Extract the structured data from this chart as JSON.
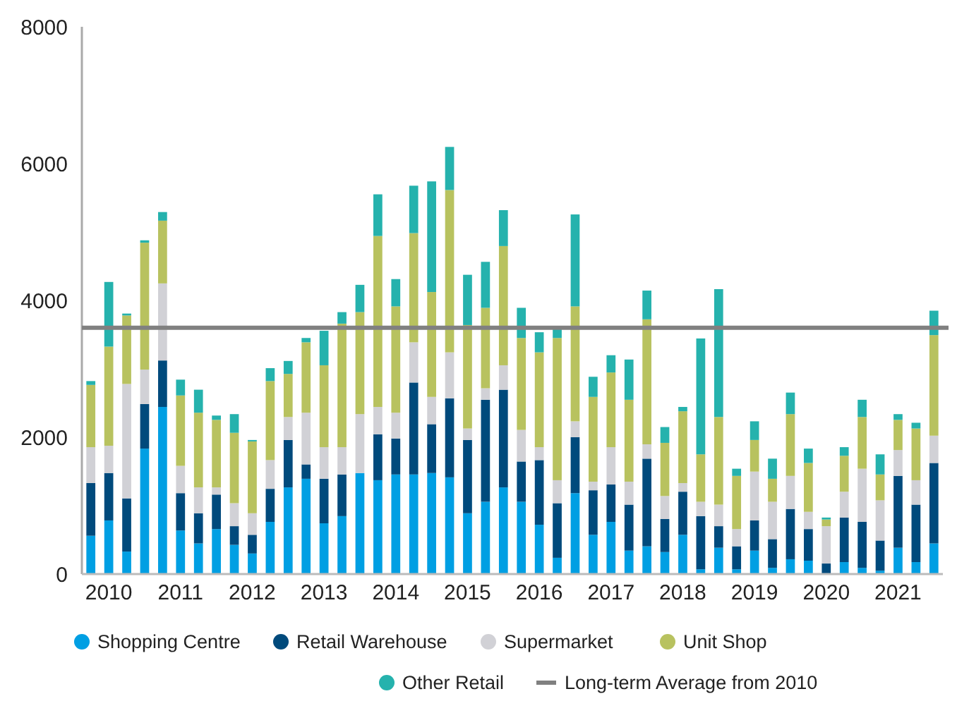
{
  "chart_data": {
    "type": "bar",
    "stacked": true,
    "categories": [
      null,
      "2010",
      null,
      null,
      null,
      "2011",
      null,
      null,
      null,
      "2012",
      null,
      null,
      null,
      "2013",
      null,
      null,
      null,
      "2014",
      null,
      null,
      null,
      "2015",
      null,
      null,
      null,
      "2016",
      null,
      null,
      null,
      "2017",
      null,
      null,
      null,
      "2018",
      null,
      null,
      null,
      "2019",
      null,
      null,
      null,
      "2020",
      null,
      null,
      null,
      "2021",
      null,
      null
    ],
    "series": [
      {
        "name": "Shopping Centre",
        "color": "#009fe3",
        "values": [
          560,
          784,
          329,
          1834,
          2443,
          637,
          448,
          658,
          427,
          301,
          763,
          1267,
          1393,
          742,
          847,
          1477,
          1372,
          1456,
          1456,
          1477,
          1414,
          889,
          1057,
          1267,
          1057,
          721,
          238,
          1183,
          574,
          763,
          343,
          406,
          322,
          574,
          70,
          385,
          70,
          343,
          91,
          217,
          196,
          7,
          175,
          91,
          49,
          385,
          175,
          448
        ]
      },
      {
        "name": "Retail Warehouse",
        "color": "#004a7c",
        "values": [
          770,
          693,
          777,
          651,
          679,
          546,
          441,
          504,
          273,
          273,
          483,
          693,
          210,
          651,
          609,
          0,
          672,
          525,
          1344,
          714,
          1155,
          1071,
          1491,
          1428,
          588,
          945,
          798,
          819,
          651,
          546,
          672,
          1281,
          483,
          630,
          777,
          315,
          336,
          441,
          420,
          735,
          462,
          147,
          651,
          672,
          441,
          1050,
          840,
          1176
        ]
      },
      {
        "name": "Supermarket",
        "color": "#d1d1d6",
        "values": [
          525,
          399,
          1673,
          504,
          1127,
          399,
          378,
          105,
          336,
          315,
          420,
          336,
          756,
          462,
          399,
          861,
          399,
          378,
          588,
          399,
          672,
          168,
          168,
          357,
          462,
          189,
          336,
          231,
          126,
          546,
          336,
          210,
          336,
          126,
          210,
          315,
          252,
          714,
          546,
          483,
          252,
          546,
          378,
          777,
          588,
          378,
          357,
          399
        ]
      },
      {
        "name": "Unit Shop",
        "color": "#b8c25f",
        "values": [
          910,
          1449,
          1001,
          1855,
          917,
          1029,
          1092,
          987,
          1029,
          1050,
          1155,
          630,
          1029,
          1197,
          1806,
          1491,
          2499,
          1554,
          1596,
          1533,
          2373,
          1512,
          1176,
          1743,
          1344,
          1386,
          2079,
          1680,
          1239,
          1092,
          1197,
          1827,
          777,
          1050,
          693,
          1281,
          777,
          462,
          336,
          903,
          714,
          98,
          525,
          756,
          378,
          441,
          756,
          1470
        ]
      },
      {
        "name": "Other Retail",
        "color": "#25b2ad",
        "values": [
          56,
          945,
          28,
          35,
          126,
          231,
          336,
          63,
          273,
          21,
          189,
          189,
          63,
          504,
          168,
          399,
          609,
          399,
          693,
          1617,
          630,
          735,
          672,
          525,
          441,
          294,
          126,
          1344,
          294,
          252,
          588,
          420,
          231,
          63,
          1694,
          1869,
          105,
          273,
          294,
          315,
          210,
          28,
          126,
          252,
          294,
          84,
          84,
          357
        ]
      }
    ],
    "ylim": [
      0,
      8000
    ],
    "yticks": [
      0,
      2000,
      4000,
      6000,
      8000
    ],
    "grid": false,
    "legend": "bottom",
    "ref_lines": [
      {
        "axis": "y",
        "value": 3600,
        "label": "Long-term Average from 2010",
        "color": "#808080"
      }
    ]
  }
}
